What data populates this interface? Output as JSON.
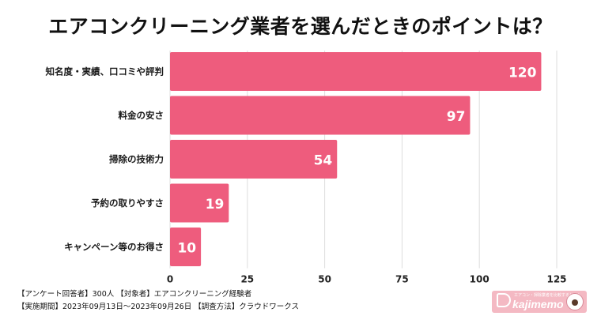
{
  "chart_data": {
    "type": "bar",
    "orientation": "horizontal",
    "title": "エアコンクリーニング業者を選んだときのポイントは？",
    "categories": [
      "知名度・実績、口コミや評判",
      "料金の安さ",
      "掃除の技術力",
      "予約の取りやすさ",
      "キャンペーン等のお得さ"
    ],
    "values": [
      120,
      97,
      54,
      19,
      10
    ],
    "xlim": [
      0,
      125
    ],
    "xticks": [
      "0",
      "25",
      "50",
      "75",
      "100",
      "125"
    ],
    "grid": true,
    "bar_color": "#ee5c7d"
  },
  "footer": {
    "line1": "【アンケート回答者】300人 【対象者】エアコンクリーニング経験者",
    "line2": "【実施期間】2023年09月13日〜2023年09月26日 【調査方法】クラウドワークス"
  },
  "logo": {
    "text": "kajimemo",
    "tagline": "エアコン・掃除業者を比較するサイト"
  }
}
